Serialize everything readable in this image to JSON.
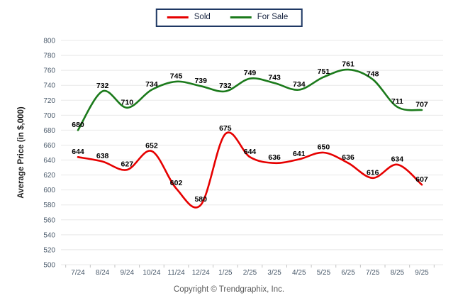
{
  "legend": {
    "items": [
      {
        "label": "Sold",
        "color": "#e60000"
      },
      {
        "label": "For Sale",
        "color": "#1b7a1b"
      }
    ],
    "border_color": "#1f3864"
  },
  "footer": {
    "copyright": "Copyright © Trendgraphix, Inc."
  },
  "colors": {
    "sold_line": "#e60000",
    "for_sale_line": "#1b7a1b",
    "grid": "#e8e8e8",
    "axis_tick": "#c3c3c3",
    "tick_label": "#4a5a6b",
    "data_label": "#000000",
    "axis_title": "#1a1a1a"
  },
  "chart_data": {
    "type": "line",
    "title": "",
    "xlabel": "",
    "ylabel": "Average Price (in $,000)",
    "categories": [
      "7/24",
      "8/24",
      "9/24",
      "10/24",
      "11/24",
      "12/24",
      "1/25",
      "2/25",
      "3/25",
      "4/25",
      "5/25",
      "6/25",
      "7/25",
      "8/25",
      "9/25"
    ],
    "series": [
      {
        "name": "Sold",
        "color": "#e60000",
        "values": [
          644,
          638,
          627,
          652,
          602,
          580,
          675,
          644,
          636,
          641,
          650,
          636,
          616,
          634,
          607
        ]
      },
      {
        "name": "For Sale",
        "color": "#1b7a1b",
        "values": [
          680,
          732,
          710,
          734,
          745,
          739,
          732,
          749,
          743,
          734,
          751,
          761,
          748,
          711,
          707
        ]
      }
    ],
    "ylim": [
      500,
      800
    ],
    "ytick_step": 20,
    "grid": true,
    "smooth": true,
    "data_labels": true,
    "legend_position": "top"
  }
}
